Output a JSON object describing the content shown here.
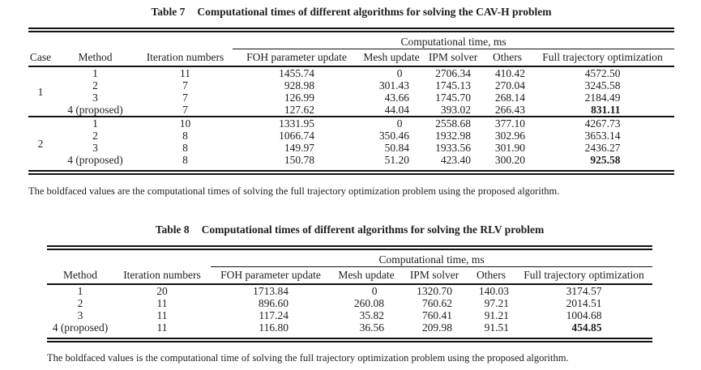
{
  "page": {
    "background": "#ffffff",
    "text_color": "#1e1e1e",
    "rule_color": "#111111"
  },
  "tables": [
    {
      "title_label": "Table 7",
      "title": "Computational times of different algorithms for solving the CAV-H problem",
      "span_header": "Computational time, ms",
      "columns": [
        "Case",
        "Method",
        "Iteration numbers",
        "FOH parameter update",
        "Mesh update",
        "IPM solver",
        "Others",
        "Full trajectory optimization"
      ],
      "groups": [
        {
          "case": "1",
          "rows": [
            {
              "cells": [
                "1",
                "11",
                "1455.74",
                "0",
                "2706.34",
                "410.42",
                "4572.50"
              ]
            },
            {
              "cells": [
                "2",
                "7",
                "928.98",
                "301.43",
                "1745.13",
                "270.04",
                "3245.58"
              ]
            },
            {
              "cells": [
                "3",
                "7",
                "126.99",
                "43.66",
                "1745.70",
                "268.14",
                "2184.49"
              ]
            },
            {
              "cells": [
                "4 (proposed)",
                "7",
                "127.62",
                "44.04",
                "393.02",
                "266.43",
                "831.11"
              ],
              "bold_last": true
            }
          ]
        },
        {
          "case": "2",
          "rows": [
            {
              "cells": [
                "1",
                "10",
                "1331.95",
                "0",
                "2558.68",
                "377.10",
                "4267.73"
              ]
            },
            {
              "cells": [
                "2",
                "8",
                "1066.74",
                "350.46",
                "1932.98",
                "302.96",
                "3653.14"
              ]
            },
            {
              "cells": [
                "3",
                "8",
                "149.97",
                "50.84",
                "1933.56",
                "301.90",
                "2436.27"
              ]
            },
            {
              "cells": [
                "4 (proposed)",
                "8",
                "150.78",
                "51.20",
                "423.40",
                "300.20",
                "925.58"
              ],
              "bold_last": true
            }
          ]
        }
      ],
      "footnote": "The boldfaced values are the computational times of solving the full trajectory optimization problem using the proposed algorithm."
    },
    {
      "title_label": "Table 8",
      "title": "Computational times of different algorithms for solving the RLV problem",
      "span_header": "Computational time, ms",
      "columns": [
        "Method",
        "Iteration numbers",
        "FOH parameter update",
        "Mesh update",
        "IPM solver",
        "Others",
        "Full trajectory optimization"
      ],
      "groups": [
        {
          "case": null,
          "rows": [
            {
              "cells": [
                "1",
                "20",
                "1713.84",
                "0",
                "1320.70",
                "140.03",
                "3174.57"
              ]
            },
            {
              "cells": [
                "2",
                "11",
                "896.60",
                "260.08",
                "760.62",
                "97.21",
                "2014.51"
              ]
            },
            {
              "cells": [
                "3",
                "11",
                "117.24",
                "35.82",
                "760.41",
                "91.21",
                "1004.68"
              ]
            },
            {
              "cells": [
                "4 (proposed)",
                "11",
                "116.80",
                "36.56",
                "209.98",
                "91.51",
                "454.85"
              ],
              "bold_last": true
            }
          ]
        }
      ],
      "footnote": "The boldfaced values is the computational time of solving the full trajectory optimization problem using the proposed algorithm."
    }
  ]
}
